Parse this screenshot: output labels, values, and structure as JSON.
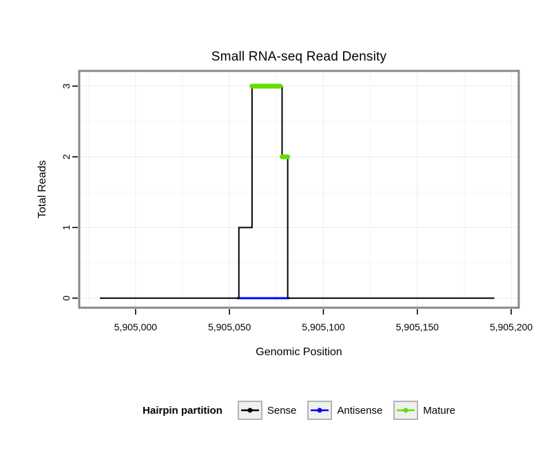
{
  "chart_data": {
    "type": "line",
    "title": "Small RNA-seq Read Density",
    "xlabel": "Genomic Position",
    "ylabel": "Total Reads",
    "xlim": [
      5904970,
      5905204
    ],
    "ylim": [
      -0.135,
      3.215
    ],
    "x_ticks": [
      {
        "value": 5905000,
        "label": "5,905,000"
      },
      {
        "value": 5905050,
        "label": "5,905,050"
      },
      {
        "value": 5905100,
        "label": "5,905,100"
      },
      {
        "value": 5905150,
        "label": "5,905,150"
      },
      {
        "value": 5905200,
        "label": "5,905,200"
      }
    ],
    "y_ticks": [
      {
        "value": 0,
        "label": "0"
      },
      {
        "value": 1,
        "label": "1"
      },
      {
        "value": 2,
        "label": "2"
      },
      {
        "value": 3,
        "label": "3"
      }
    ],
    "grid": {
      "major_color": "#ececec",
      "minor_color": "#f5f5f5",
      "x_minor": [
        5904975,
        5905025,
        5905075,
        5905125,
        5905175
      ],
      "y_minor": [
        0.5,
        1.5,
        2.5
      ]
    },
    "panel_border_color": "#888888",
    "series": [
      {
        "name": "Antisense",
        "color": "#0000ff",
        "width": 3,
        "points": [
          [
            5905054,
            0
          ],
          [
            5905082,
            0
          ]
        ]
      },
      {
        "name": "Sense",
        "color": "#000000",
        "width": 2,
        "points": [
          [
            5904981,
            0
          ],
          [
            5905055,
            0
          ],
          [
            5905055,
            1
          ],
          [
            5905062,
            1
          ],
          [
            5905062,
            3
          ],
          [
            5905078,
            3
          ],
          [
            5905078,
            2
          ],
          [
            5905081,
            2
          ],
          [
            5905081,
            0
          ],
          [
            5905191,
            0
          ]
        ]
      },
      {
        "name": "Mature",
        "color": "#66dd00",
        "width": 7,
        "segments": [
          [
            [
              5905062,
              3
            ],
            [
              5905077,
              3
            ]
          ],
          [
            [
              5905078,
              2
            ],
            [
              5905081,
              2
            ]
          ]
        ]
      }
    ]
  },
  "legend": {
    "title": "Hairpin partition",
    "items": [
      {
        "label": "Sense",
        "color": "#000000"
      },
      {
        "label": "Antisense",
        "color": "#0000ff"
      },
      {
        "label": "Mature",
        "color": "#66dd00"
      }
    ]
  }
}
